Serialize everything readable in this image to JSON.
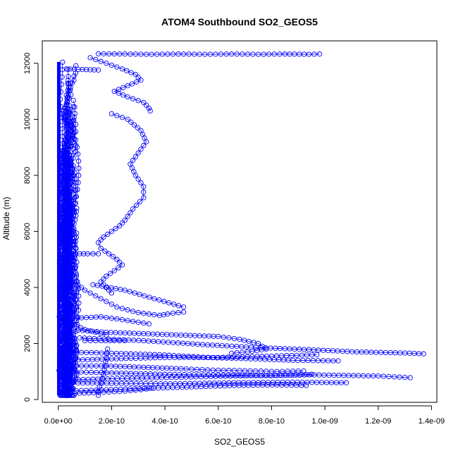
{
  "chart_data": {
    "type": "scatter",
    "title": "ATOM4 Southbound SO2_GEOS5",
    "xlabel": "SO2_GEOS5",
    "ylabel": "Altitude (m)",
    "xlim": [
      -6e-11,
      1.42e-09
    ],
    "ylim": [
      -100,
      12800
    ],
    "xticks": [
      0,
      2e-10,
      4e-10,
      6e-10,
      8e-10,
      1e-09,
      1.2e-09,
      1.4e-09
    ],
    "xtick_labels": [
      "0.0e+00",
      "2.0e-10",
      "4.0e-10",
      "6.0e-10",
      "8.0e-10",
      "1.0e-09",
      "1.2e-09",
      "1.4e-09"
    ],
    "yticks": [
      0,
      2000,
      4000,
      6000,
      8000,
      10000,
      12000
    ],
    "ytick_labels": [
      "0",
      "2000",
      "4000",
      "6000",
      "8000",
      "10000",
      "12000"
    ],
    "color": "#0000ff",
    "marker": "open-circle",
    "connected": true,
    "series": [
      {
        "x": [
          1.5e-10,
          2.5e-10,
          3.5e-10,
          4.5e-10,
          5.5e-10,
          6.5e-10,
          7.5e-10,
          8.5e-10,
          9.4e-10,
          9.8e-10
        ],
        "y": [
          12340,
          12330,
          12320,
          12330,
          12320,
          12330,
          12320,
          12330,
          12320,
          12330
        ]
      },
      {
        "x": [
          3e-11,
          6e-11,
          9e-11,
          1.2e-10,
          1.5e-10
        ],
        "y": [
          11800,
          11790,
          11780,
          11770,
          11760
        ]
      },
      {
        "x": [
          1.2e-10,
          1.8e-10,
          2.4e-10,
          2.9e-10,
          3.1e-10,
          2.6e-10,
          2.1e-10,
          2.6e-10,
          3.2e-10,
          3.4e-10,
          3.45e-10
        ],
        "y": [
          12200,
          12000,
          11800,
          11600,
          11400,
          11200,
          11000,
          10800,
          10600,
          10400,
          10300
        ]
      },
      {
        "x": [
          2e-10,
          2.6e-10,
          3.1e-10,
          3.3e-10,
          3e-10,
          2.7e-10,
          2.9e-10,
          3.2e-10,
          3.2e-10,
          2.8e-10,
          2.5e-10,
          2.3e-10,
          2e-10,
          1.7e-10,
          1.5e-10,
          1.6e-10,
          1.9e-10,
          2.2e-10,
          2.4e-10,
          2.1e-10,
          1.8e-10,
          1.6e-10,
          1.8e-10,
          2e-10
        ],
        "y": [
          10200,
          10000,
          9600,
          9200,
          8800,
          8400,
          8000,
          7600,
          7200,
          6800,
          6400,
          6200,
          6000,
          5800,
          5600,
          5400,
          5200,
          5000,
          4800,
          4600,
          4400,
          4200,
          4000,
          3800
        ]
      },
      {
        "x": [
          2.5e-11,
          5e-11,
          8e-11,
          1.1e-10,
          1.5e-10
        ],
        "y": [
          5200,
          5200,
          5200,
          5200,
          5200
        ]
      },
      {
        "x": [
          6e-11,
          1e-10,
          1.4e-10,
          1.8e-10,
          2.2e-10,
          2.6e-10,
          3e-10,
          3.4e-10,
          3.8e-10,
          4.1e-10,
          4.3e-10,
          4.5e-10,
          4.7e-10
        ],
        "y": [
          4200,
          3900,
          3700,
          3500,
          3300,
          3200,
          3100,
          3050,
          3000,
          3050,
          3080,
          3100,
          3120
        ]
      },
      {
        "x": [
          1.3e-10,
          2.5e-10,
          3.6e-10,
          4.7e-10
        ],
        "y": [
          4100,
          3900,
          3600,
          3300
        ]
      },
      {
        "x": [
          5e-11,
          1.6e-10,
          2.4e-10,
          3.4e-10
        ],
        "y": [
          2900,
          2950,
          2850,
          2700
        ]
      },
      {
        "x": [
          2e-11,
          1e-10,
          1.8e-10
        ],
        "y": [
          2800,
          2500,
          2300
        ]
      },
      {
        "x": [
          4e-11,
          1.8e-10,
          3.2e-10,
          4.6e-10,
          6e-10,
          6.8e-10,
          7.5e-10,
          7.8e-10,
          7.1e-10,
          6.5e-10
        ],
        "y": [
          2500,
          2400,
          2350,
          2300,
          2250,
          2150,
          2000,
          1800,
          1700,
          1650
        ]
      },
      {
        "x": [
          1e-10,
          1.6e-10,
          2.1e-10,
          2.5e-10
        ],
        "y": [
          2100,
          2100,
          2100,
          2100
        ]
      },
      {
        "x": [
          8e-11,
          3.2e-10,
          5.6e-10,
          7.6e-10,
          9.4e-10,
          1.12e-09,
          1.3e-09,
          1.37e-09
        ],
        "y": [
          2200,
          2100,
          1950,
          1850,
          1780,
          1700,
          1660,
          1630
        ]
      },
      {
        "x": [
          2e-11,
          2e-10,
          4e-10,
          6e-10,
          8e-10,
          9.7e-10
        ],
        "y": [
          1400,
          1450,
          1500,
          1500,
          1550,
          1600
        ]
      },
      {
        "x": [
          3e-11,
          2e-10,
          3.8e-10,
          5.6e-10,
          7.4e-10,
          8.8e-10,
          1.05e-09
        ],
        "y": [
          1700,
          1650,
          1600,
          1500,
          1450,
          1400,
          1380
        ]
      },
      {
        "x": [
          5e-11,
          1.8e-10,
          3.2e-10,
          4.6e-10,
          5.8e-10,
          7e-10,
          8.2e-10,
          9.2e-10
        ],
        "y": [
          1200,
          1200,
          1150,
          1100,
          1050,
          1030,
          1000,
          1020
        ]
      },
      {
        "x": [
          1e-11,
          2e-10,
          4e-10,
          6e-10,
          8e-10,
          9.5e-10
        ],
        "y": [
          1000,
          950,
          900,
          870,
          850,
          900
        ]
      },
      {
        "x": [
          2e-11,
          2.4e-10,
          4.8e-10,
          7.2e-10,
          9.6e-10,
          1.2e-09,
          1.32e-09
        ],
        "y": [
          700,
          750,
          800,
          850,
          880,
          840,
          780
        ]
      },
      {
        "x": [
          2e-11,
          2e-10,
          4.2e-10,
          6.4e-10,
          8.6e-10,
          1.08e-09
        ],
        "y": [
          600,
          580,
          560,
          600,
          620,
          600
        ]
      },
      {
        "x": [
          3e-11,
          1.8e-10,
          3.4e-10,
          5e-10,
          6.6e-10,
          8.2e-10,
          9.3e-10
        ],
        "y": [
          300,
          350,
          400,
          450,
          500,
          520,
          500
        ]
      },
      {
        "x": [
          1e-11,
          1.5e-10,
          2.5e-10,
          3.1e-10,
          3.5e-10
        ],
        "y": [
          200,
          250,
          300,
          350,
          400
        ]
      },
      {
        "x": [
          1.5e-10,
          1.5e-10,
          1.6e-10,
          1.7e-10,
          1.75e-10,
          1.8e-10,
          1.85e-10
        ],
        "y": [
          150,
          300,
          600,
          900,
          1200,
          1500,
          1800
        ]
      }
    ],
    "dense_band": {
      "x_range": [
        0,
        1.6e-10
      ],
      "y_range": [
        150,
        12050
      ]
    },
    "grid": false,
    "legend": "none"
  }
}
